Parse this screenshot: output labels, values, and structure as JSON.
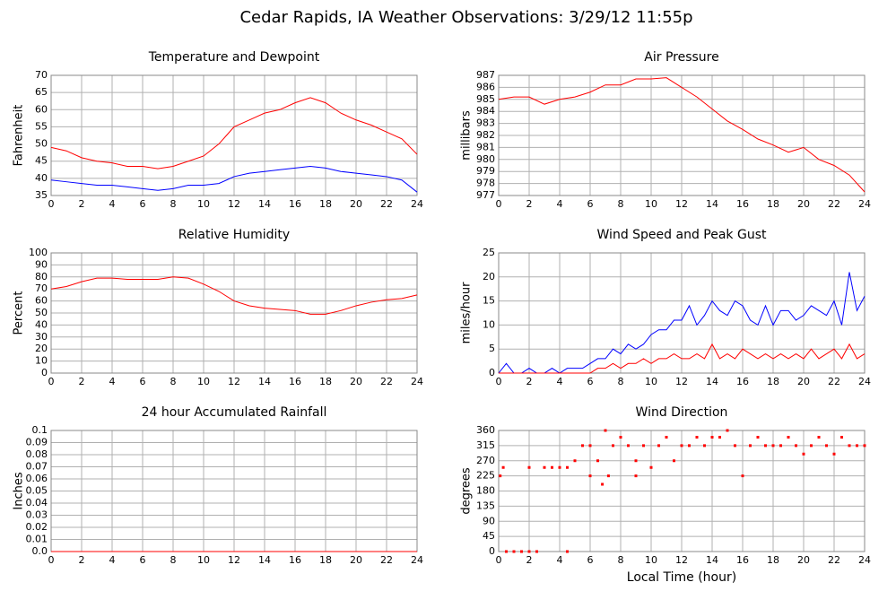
{
  "title": "Cedar Rapids, IA Weather Observations: 3/29/12 11:55p",
  "chart_data": [
    {
      "type": "line",
      "title": "Temperature and Dewpoint",
      "ylabel": "Fahrenheit",
      "x": [
        0,
        1,
        2,
        3,
        4,
        5,
        6,
        7,
        8,
        9,
        10,
        11,
        12,
        13,
        14,
        15,
        16,
        17,
        18,
        19,
        20,
        21,
        22,
        23,
        24
      ],
      "series": [
        {
          "color": "#ff0000",
          "values": [
            49,
            48,
            46,
            45,
            44.5,
            43.5,
            43.5,
            42.8,
            43.5,
            45,
            46.5,
            50,
            55,
            57,
            59,
            60,
            62,
            63.5,
            62,
            59,
            57,
            55.5,
            53.5,
            51.5,
            47
          ]
        },
        {
          "color": "#0000ff",
          "values": [
            39.5,
            39,
            38.5,
            38,
            38,
            37.5,
            37,
            36.5,
            37,
            38,
            38,
            38.5,
            40.5,
            41.5,
            42,
            42.5,
            43,
            43.5,
            43,
            42,
            41.5,
            41,
            40.5,
            39.5,
            36
          ]
        }
      ],
      "xlim": [
        0,
        24
      ],
      "ylim": [
        35,
        70
      ],
      "xticks": [
        0,
        2,
        4,
        6,
        8,
        10,
        12,
        14,
        16,
        18,
        20,
        22,
        24
      ],
      "yticks": [
        35,
        40,
        45,
        50,
        55,
        60,
        65,
        70
      ],
      "grid": true
    },
    {
      "type": "line",
      "title": "Air Pressure",
      "ylabel": "millibars",
      "x": [
        0,
        1,
        2,
        3,
        4,
        5,
        6,
        7,
        8,
        9,
        10,
        11,
        12,
        13,
        14,
        15,
        16,
        17,
        18,
        19,
        20,
        21,
        22,
        23,
        24
      ],
      "series": [
        {
          "color": "#ff0000",
          "values": [
            985,
            985.2,
            985.2,
            984.6,
            985,
            985.2,
            985.6,
            986.2,
            986.2,
            986.7,
            986.7,
            986.8,
            986,
            985.2,
            984.2,
            983.2,
            982.5,
            981.7,
            981.2,
            980.6,
            981,
            980,
            979.5,
            978.7,
            977.3
          ]
        }
      ],
      "xlim": [
        0,
        24
      ],
      "ylim": [
        977,
        987
      ],
      "xticks": [
        0,
        2,
        4,
        6,
        8,
        10,
        12,
        14,
        16,
        18,
        20,
        22,
        24
      ],
      "yticks": [
        977,
        978,
        979,
        980,
        981,
        982,
        983,
        984,
        985,
        986,
        987
      ],
      "grid": true
    },
    {
      "type": "line",
      "title": "Relative Humidity",
      "ylabel": "Percent",
      "x": [
        0,
        1,
        2,
        3,
        4,
        5,
        6,
        7,
        8,
        9,
        10,
        11,
        12,
        13,
        14,
        15,
        16,
        17,
        18,
        19,
        20,
        21,
        22,
        23,
        24
      ],
      "series": [
        {
          "color": "#ff0000",
          "values": [
            70,
            72,
            76,
            79,
            79,
            78,
            78,
            78,
            80,
            79,
            74,
            68,
            60,
            56,
            54,
            53,
            52,
            49,
            49,
            52,
            56,
            59,
            61,
            62,
            65
          ]
        }
      ],
      "xlim": [
        0,
        24
      ],
      "ylim": [
        0,
        100
      ],
      "xticks": [
        0,
        2,
        4,
        6,
        8,
        10,
        12,
        14,
        16,
        18,
        20,
        22,
        24
      ],
      "yticks": [
        0,
        10,
        20,
        30,
        40,
        50,
        60,
        70,
        80,
        90,
        100
      ],
      "grid": true
    },
    {
      "type": "line",
      "title": "Wind Speed and Peak Gust",
      "ylabel": "miles/hour",
      "x": [
        0,
        0.5,
        1,
        1.5,
        2,
        2.5,
        3,
        3.5,
        4,
        4.5,
        5,
        5.5,
        6,
        6.5,
        7,
        7.5,
        8,
        8.5,
        9,
        9.5,
        10,
        10.5,
        11,
        11.5,
        12,
        12.5,
        13,
        13.5,
        14,
        14.5,
        15,
        15.5,
        16,
        16.5,
        17,
        17.5,
        18,
        18.5,
        19,
        19.5,
        20,
        20.5,
        21,
        21.5,
        22,
        22.5,
        23,
        23.5,
        24
      ],
      "series": [
        {
          "color": "#0000ff",
          "values": [
            0,
            2,
            0,
            0,
            1,
            0,
            0,
            1,
            0,
            1,
            1,
            1,
            2,
            3,
            3,
            5,
            4,
            6,
            5,
            6,
            8,
            9,
            9,
            11,
            11,
            14,
            10,
            12,
            15,
            13,
            12,
            15,
            14,
            11,
            10,
            14,
            10,
            13,
            13,
            11,
            12,
            14,
            13,
            12,
            15,
            10,
            21,
            13,
            16
          ]
        },
        {
          "color": "#ff0000",
          "values": [
            0,
            0,
            0,
            0,
            0,
            0,
            0,
            0,
            0,
            0,
            0,
            0,
            0,
            1,
            1,
            2,
            1,
            2,
            2,
            3,
            2,
            3,
            3,
            4,
            3,
            3,
            4,
            3,
            6,
            3,
            4,
            3,
            5,
            4,
            3,
            4,
            3,
            4,
            3,
            4,
            3,
            5,
            3,
            4,
            5,
            3,
            6,
            3,
            4
          ]
        }
      ],
      "xlim": [
        0,
        24
      ],
      "ylim": [
        0,
        25
      ],
      "xticks": [
        0,
        2,
        4,
        6,
        8,
        10,
        12,
        14,
        16,
        18,
        20,
        22,
        24
      ],
      "yticks": [
        0,
        5,
        10,
        15,
        20,
        25
      ],
      "grid": true
    },
    {
      "type": "line",
      "title": "24 hour Accumulated Rainfall",
      "ylabel": "Inches",
      "x": [
        0,
        24
      ],
      "series": [
        {
          "color": "#ff0000",
          "values": [
            0,
            0
          ]
        }
      ],
      "xlim": [
        0,
        24
      ],
      "ylim": [
        0,
        0.1
      ],
      "xticks": [
        0,
        2,
        4,
        6,
        8,
        10,
        12,
        14,
        16,
        18,
        20,
        22,
        24
      ],
      "yticks": [
        {
          "value": 0,
          "label": "0.0"
        },
        0.01,
        0.02,
        0.03,
        0.04,
        0.05,
        0.06,
        0.07,
        0.08,
        0.09,
        0.1
      ],
      "grid": true
    },
    {
      "type": "scatter",
      "title": "Wind Direction",
      "ylabel": "degrees",
      "xlabel": "Local Time (hour)",
      "x": [
        0.1,
        0.3,
        0.5,
        1,
        1.5,
        2,
        2,
        2.5,
        3,
        3.5,
        4,
        4.5,
        4.5,
        5,
        5.5,
        6,
        6,
        6.5,
        6.8,
        7,
        7.2,
        7.5,
        8,
        8.5,
        9,
        9,
        9.5,
        10,
        10.5,
        11,
        11.5,
        12,
        12.5,
        13,
        13.5,
        14,
        14.5,
        15,
        15.5,
        16,
        16.5,
        17,
        17.5,
        18,
        18.5,
        19,
        19.5,
        20,
        20.5,
        21,
        21.5,
        22,
        22.5,
        23,
        23.5,
        24
      ],
      "values": [
        225,
        250,
        0,
        0,
        0,
        250,
        0,
        0,
        250,
        250,
        250,
        250,
        0,
        270,
        315,
        315,
        225,
        270,
        200,
        360,
        225,
        315,
        340,
        315,
        270,
        225,
        315,
        250,
        315,
        340,
        270,
        315,
        315,
        340,
        315,
        340,
        340,
        360,
        315,
        225,
        315,
        340,
        315,
        315,
        315,
        340,
        315,
        290,
        315,
        340,
        315,
        290,
        340,
        315,
        315,
        315
      ],
      "color": "#ff0000",
      "xlim": [
        0,
        24
      ],
      "ylim": [
        0,
        360
      ],
      "xticks": [
        0,
        2,
        4,
        6,
        8,
        10,
        12,
        14,
        16,
        18,
        20,
        22,
        24
      ],
      "yticks": [
        0,
        45,
        90,
        135,
        180,
        225,
        270,
        315,
        360
      ],
      "grid": true
    }
  ]
}
